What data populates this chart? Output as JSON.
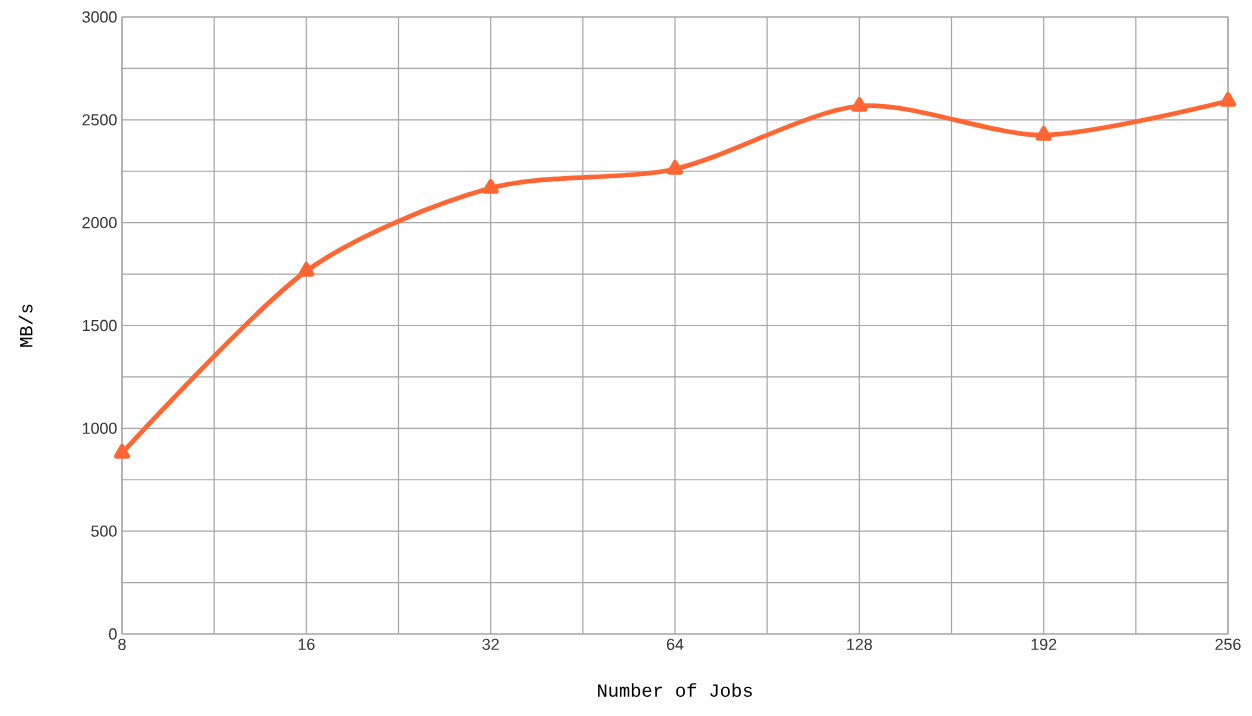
{
  "chart_data": {
    "type": "line",
    "xlabel": "Number of Jobs",
    "ylabel": "MB/s",
    "categories": [
      "8",
      "16",
      "32",
      "64",
      "128",
      "192",
      "256"
    ],
    "series": [
      {
        "color": "#ff6633",
        "values": [
          880,
          1765,
          2168,
          2261,
          2567,
          2426,
          2591
        ]
      }
    ],
    "ylim": [
      0,
      3000
    ],
    "yticks": [
      0,
      500,
      1000,
      1500,
      2000,
      2500,
      3000
    ],
    "grid": true,
    "marker": "triangle",
    "line_style": "solid"
  }
}
